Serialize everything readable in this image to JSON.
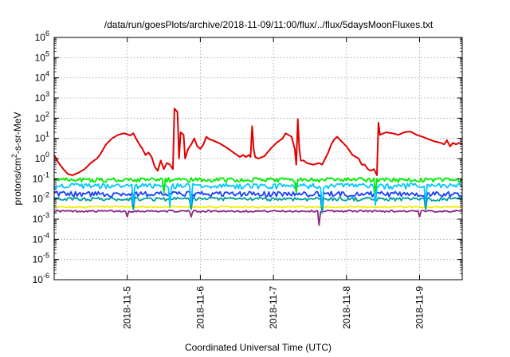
{
  "chart_data": {
    "type": "line",
    "title": "/data/run/goesPlots/archive/2018-11-09/11:00/flux/../flux/5daysMoonFluxes.txt",
    "xlabel": "Coordinated Universal Time (UTC)",
    "ylabel": {
      "prefix": "protons/cm",
      "sup": "2",
      "suffix": "-s-sr-MeV"
    },
    "yscale": "log",
    "ylim": [
      1e-06,
      1000000.0
    ],
    "yticks": [
      {
        "base": "10",
        "exp": "-6",
        "value": 1e-06
      },
      {
        "base": "10",
        "exp": "-5",
        "value": 1e-05
      },
      {
        "base": "10",
        "exp": "-4",
        "value": 0.0001
      },
      {
        "base": "10",
        "exp": "-3",
        "value": 0.001
      },
      {
        "base": "10",
        "exp": "-2",
        "value": 0.01
      },
      {
        "base": "10",
        "exp": "-1",
        "value": 0.1
      },
      {
        "base": "10",
        "exp": "0",
        "value": 1
      },
      {
        "base": "10",
        "exp": "1",
        "value": 10
      },
      {
        "base": "10",
        "exp": "2",
        "value": 100
      },
      {
        "base": "10",
        "exp": "3",
        "value": 1000
      },
      {
        "base": "10",
        "exp": "4",
        "value": 10000
      },
      {
        "base": "10",
        "exp": "5",
        "value": 100000
      },
      {
        "base": "10",
        "exp": "6",
        "value": 1000000
      }
    ],
    "xlim": [
      "2018-11-04 00:00",
      "2018-11-09 14:00"
    ],
    "xticks": [
      "2018-11-5",
      "2018-11-6",
      "2018-11-7",
      "2018-11-8",
      "2018-11-9"
    ],
    "grid": true,
    "legend": "none",
    "series": [
      {
        "color": "#e00000",
        "points": [
          [
            "2018-11-04 00:00",
            1.5
          ],
          [
            "2018-11-04 01:30",
            0.6
          ],
          [
            "2018-11-04 03:00",
            0.3
          ],
          [
            "2018-11-04 04:30",
            0.17
          ],
          [
            "2018-11-04 06:00",
            0.15
          ],
          [
            "2018-11-04 08:00",
            0.2
          ],
          [
            "2018-11-04 10:00",
            0.3
          ],
          [
            "2018-11-04 12:00",
            0.6
          ],
          [
            "2018-11-04 14:00",
            1.0
          ],
          [
            "2018-11-04 15:00",
            1.5
          ],
          [
            "2018-11-04 17:00",
            5
          ],
          [
            "2018-11-04 19:00",
            10
          ],
          [
            "2018-11-04 21:00",
            15
          ],
          [
            "2018-11-04 23:00",
            18
          ],
          [
            "2018-11-05 01:00",
            14
          ],
          [
            "2018-11-05 02:00",
            18
          ],
          [
            "2018-11-05 03:00",
            9
          ],
          [
            "2018-11-05 04:00",
            5
          ],
          [
            "2018-11-05 05:00",
            3
          ],
          [
            "2018-11-05 06:00",
            1.5
          ],
          [
            "2018-11-05 07:00",
            2
          ],
          [
            "2018-11-05 08:00",
            1.2
          ],
          [
            "2018-11-05 09:00",
            0.4
          ],
          [
            "2018-11-05 10:00",
            0.25
          ],
          [
            "2018-11-05 11:00",
            0.8
          ],
          [
            "2018-11-05 12:00",
            0.3
          ],
          [
            "2018-11-05 13:00",
            0.6
          ],
          [
            "2018-11-05 14:00",
            0.5
          ],
          [
            "2018-11-05 15:00",
            0.3
          ],
          [
            "2018-11-05 15:30",
            300
          ],
          [
            "2018-11-05 16:30",
            200
          ],
          [
            "2018-11-05 17:00",
            1.0
          ],
          [
            "2018-11-05 17:30",
            20
          ],
          [
            "2018-11-05 18:30",
            15
          ],
          [
            "2018-11-05 19:00",
            1.0
          ],
          [
            "2018-11-05 20:00",
            3
          ],
          [
            "2018-11-05 21:00",
            5
          ],
          [
            "2018-11-05 22:00",
            10
          ],
          [
            "2018-11-05 23:00",
            4
          ],
          [
            "2018-11-06 00:00",
            3
          ],
          [
            "2018-11-06 01:00",
            5
          ],
          [
            "2018-11-06 02:00",
            12
          ],
          [
            "2018-11-06 03:00",
            9
          ],
          [
            "2018-11-06 04:00",
            8
          ],
          [
            "2018-11-06 06:00",
            6
          ],
          [
            "2018-11-06 08:00",
            4
          ],
          [
            "2018-11-06 10:00",
            2.5
          ],
          [
            "2018-11-06 12:00",
            1.5
          ],
          [
            "2018-11-06 13:00",
            1.2
          ],
          [
            "2018-11-06 14:00",
            1.5
          ],
          [
            "2018-11-06 15:00",
            1.2
          ],
          [
            "2018-11-06 16:00",
            1.5
          ],
          [
            "2018-11-06 16:30",
            1.2
          ],
          [
            "2018-11-06 17:00",
            40
          ],
          [
            "2018-11-06 17:30",
            3
          ],
          [
            "2018-11-06 18:00",
            1.2
          ],
          [
            "2018-11-06 19:00",
            1.0
          ],
          [
            "2018-11-06 21:00",
            1.3
          ],
          [
            "2018-11-06 23:00",
            3
          ],
          [
            "2018-11-07 01:00",
            6
          ],
          [
            "2018-11-07 03:00",
            10
          ],
          [
            "2018-11-07 04:00",
            18
          ],
          [
            "2018-11-07 06:00",
            12
          ],
          [
            "2018-11-07 07:00",
            3
          ],
          [
            "2018-11-07 07:30",
            0.5
          ],
          [
            "2018-11-07 08:00",
            90
          ],
          [
            "2018-11-07 08:30",
            3
          ],
          [
            "2018-11-07 09:00",
            0.8
          ],
          [
            "2018-11-07 10:00",
            0.8
          ],
          [
            "2018-11-07 11:00",
            0.6
          ],
          [
            "2018-11-07 13:00",
            0.5
          ],
          [
            "2018-11-07 15:00",
            0.6
          ],
          [
            "2018-11-07 16:00",
            0.5
          ],
          [
            "2018-11-07 17:00",
            1.0
          ],
          [
            "2018-11-07 18:00",
            2
          ],
          [
            "2018-11-07 19:00",
            5
          ],
          [
            "2018-11-07 20:00",
            9
          ],
          [
            "2018-11-07 21:00",
            12
          ],
          [
            "2018-11-07 22:00",
            8
          ],
          [
            "2018-11-08 00:00",
            4
          ],
          [
            "2018-11-08 02:00",
            1.5
          ],
          [
            "2018-11-08 04:00",
            1.0
          ],
          [
            "2018-11-08 05:00",
            0.5
          ],
          [
            "2018-11-08 06:00",
            0.5
          ],
          [
            "2018-11-08 07:00",
            0.3
          ],
          [
            "2018-11-08 08:00",
            0.25
          ],
          [
            "2018-11-08 09:00",
            0.3
          ],
          [
            "2018-11-08 10:00",
            0.15
          ],
          [
            "2018-11-08 10:30",
            60
          ],
          [
            "2018-11-08 11:00",
            15
          ],
          [
            "2018-11-08 13:00",
            20
          ],
          [
            "2018-11-08 15:00",
            18
          ],
          [
            "2018-11-08 17:00",
            15
          ],
          [
            "2018-11-08 19:00",
            20
          ],
          [
            "2018-11-08 21:00",
            22
          ],
          [
            "2018-11-08 23:00",
            15
          ],
          [
            "2018-11-09 01:00",
            12
          ],
          [
            "2018-11-09 03:00",
            9
          ],
          [
            "2018-11-09 05:00",
            7
          ],
          [
            "2018-11-09 07:00",
            6
          ],
          [
            "2018-11-09 08:00",
            5
          ],
          [
            "2018-11-09 09:00",
            8
          ],
          [
            "2018-11-09 10:00",
            4
          ],
          [
            "2018-11-09 11:00",
            6
          ],
          [
            "2018-11-09 12:00",
            5
          ],
          [
            "2018-11-09 13:00",
            6
          ],
          [
            "2018-11-09 14:00",
            5
          ]
        ]
      },
      {
        "color": "#00ee00",
        "baseline": 0.09,
        "spread": 0.25,
        "dips": [
          [
            "2018-11-05 12:00",
            0.02
          ],
          [
            "2018-11-07 07:30",
            0.02
          ],
          [
            "2018-11-08 09:30",
            0.02
          ]
        ]
      },
      {
        "color": "#00c8ff",
        "baseline": 0.045,
        "spread": 0.3,
        "dips": [
          [
            "2018-11-05 02:00",
            0.006
          ],
          [
            "2018-11-05 14:00",
            0.004
          ],
          [
            "2018-11-05 21:00",
            0.006
          ],
          [
            "2018-11-07 16:00",
            0.004
          ],
          [
            "2018-11-08 09:30",
            0.005
          ],
          [
            "2018-11-09 02:00",
            0.006
          ]
        ]
      },
      {
        "color": "#1a3fff",
        "baseline": 0.018,
        "spread": 0.3,
        "dips": [
          [
            "2018-11-05 02:00",
            0.006
          ],
          [
            "2018-11-05 21:00",
            0.006
          ],
          [
            "2018-11-07 16:00",
            0.004
          ],
          [
            "2018-11-09 02:00",
            0.006
          ]
        ]
      },
      {
        "color": "#00a0a0",
        "baseline": 0.01,
        "spread": 0.2,
        "dips": [
          [
            "2018-11-05 02:00",
            0.003
          ],
          [
            "2018-11-05 21:00",
            0.003
          ],
          [
            "2018-11-07 16:00",
            0.002
          ],
          [
            "2018-11-09 02:00",
            0.003
          ]
        ]
      },
      {
        "color": "#eeee00",
        "baseline": 0.004,
        "spread": 0.08,
        "dips": []
      },
      {
        "color": "#8a2a82",
        "baseline": 0.0025,
        "spread": 0.1,
        "dips": [
          [
            "2018-11-05 00:00",
            0.0013
          ],
          [
            "2018-11-05 21:00",
            0.0013
          ],
          [
            "2018-11-07 15:00",
            0.0005
          ],
          [
            "2018-11-09 00:00",
            0.0013
          ]
        ]
      }
    ]
  }
}
